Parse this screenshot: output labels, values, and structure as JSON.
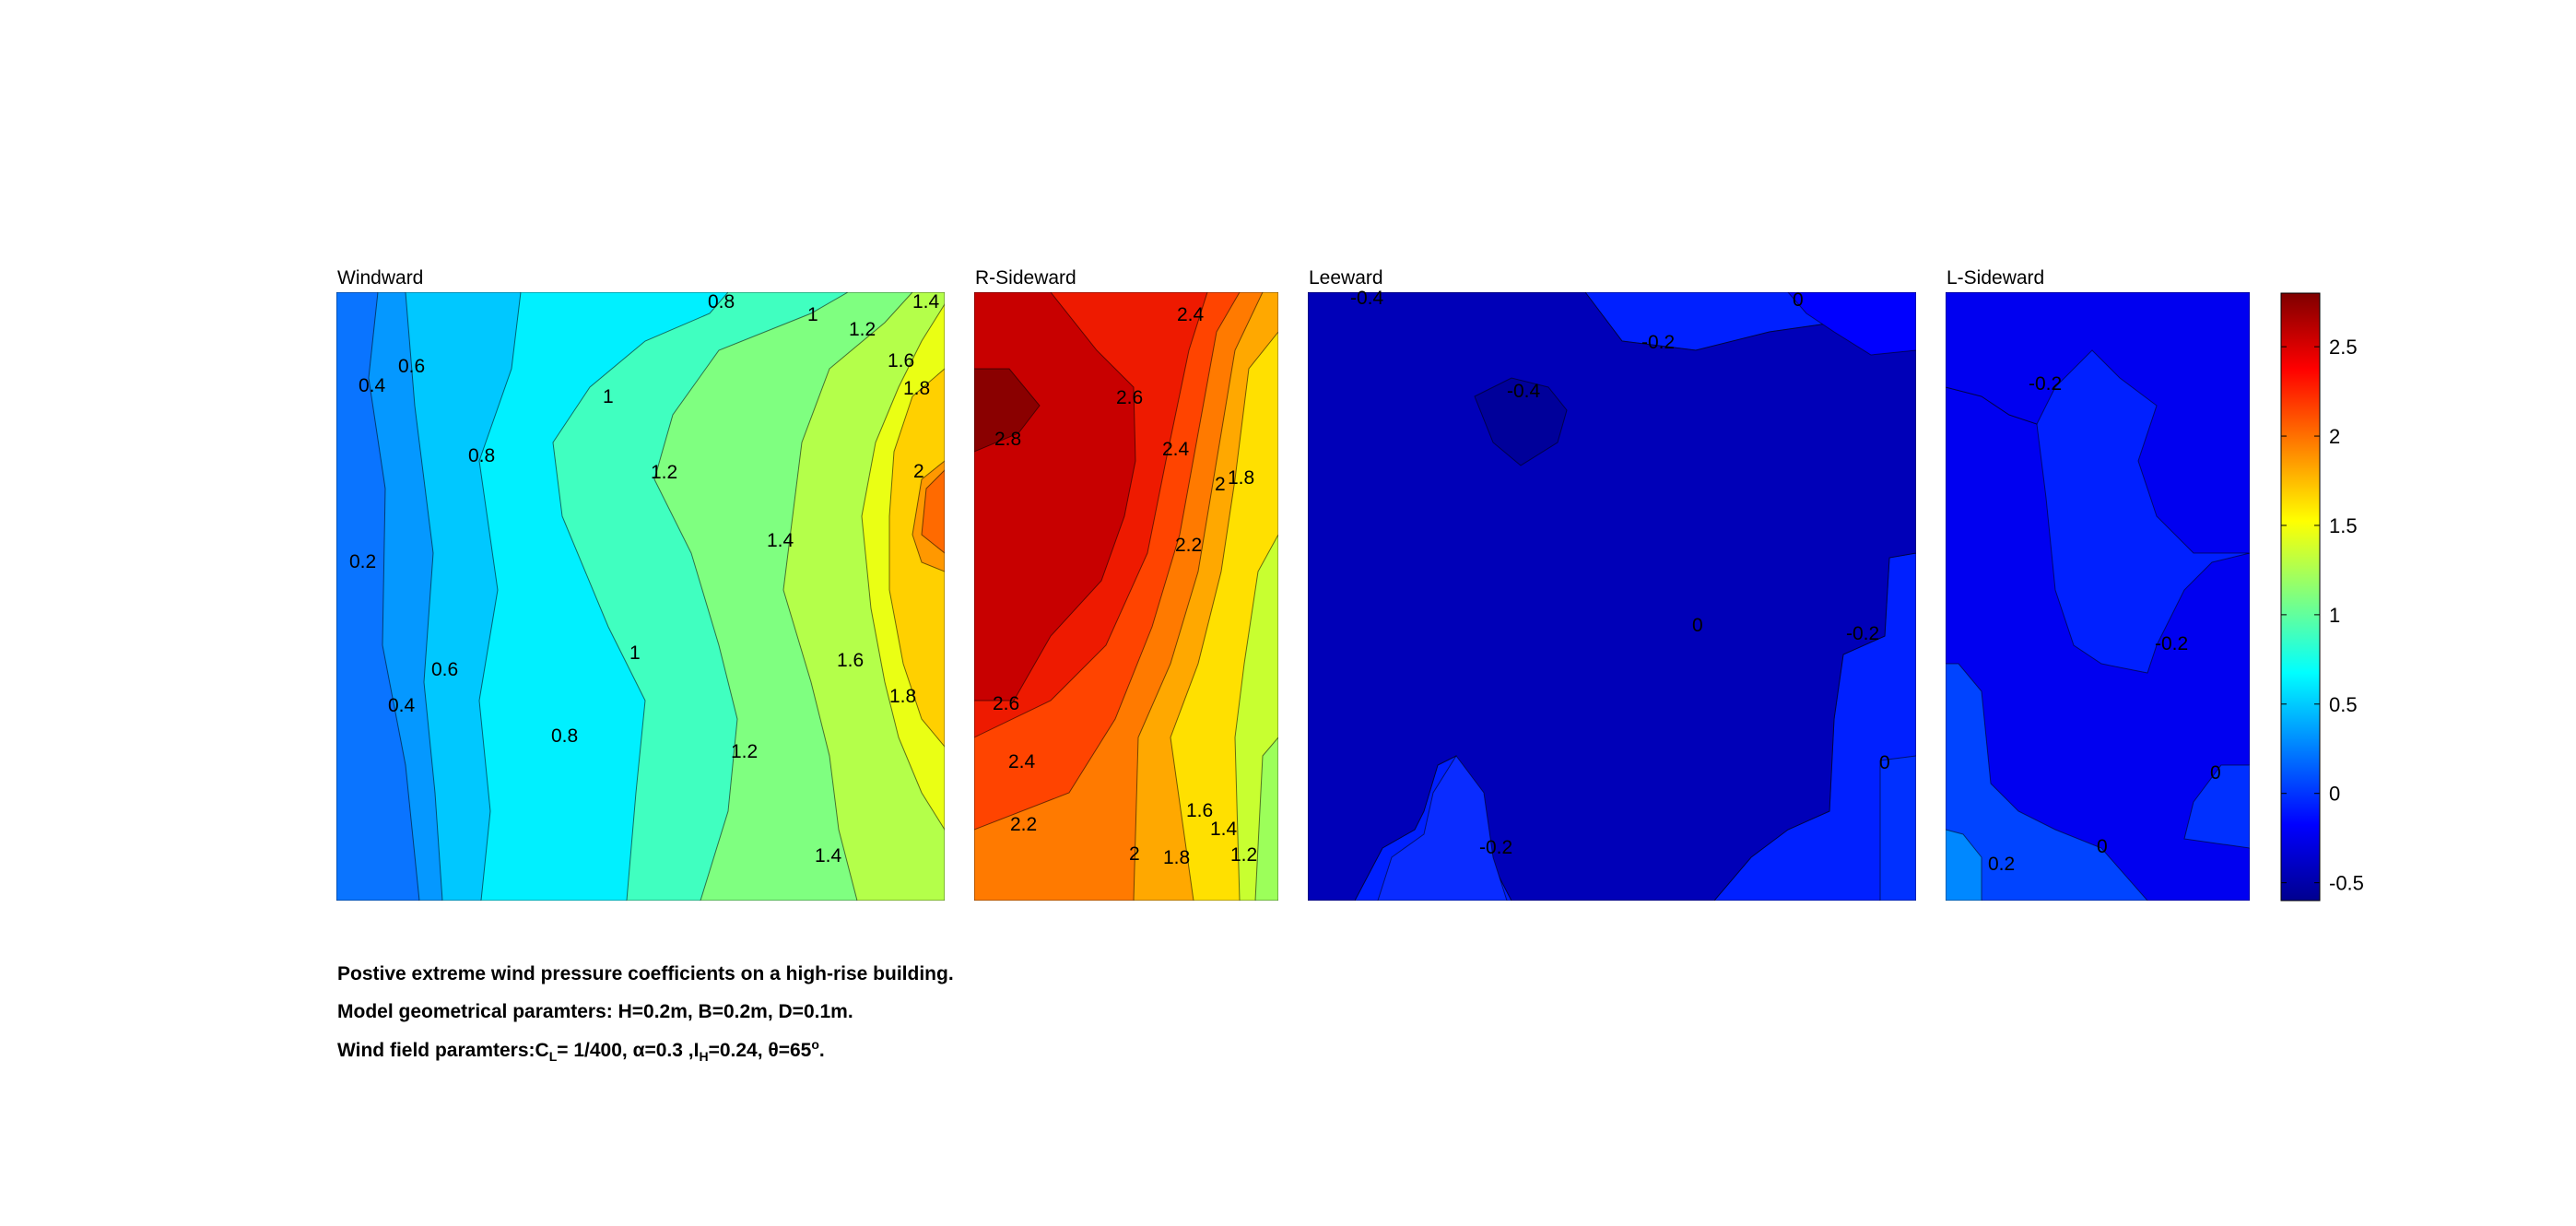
{
  "chart_data": {
    "type": "heatmap",
    "description_style": "filled contour maps, jet colormap",
    "panels": [
      {
        "title": "Windward",
        "contour_labels": [
          "0.8",
          "1",
          "1.2",
          "1.4",
          "0.6",
          "1.6",
          "0.4",
          "1.8",
          "1",
          "0.8",
          "1.2",
          "2",
          "0.2",
          "1.4",
          "1",
          "1.6",
          "0.6",
          "0.4",
          "1.8",
          "0.8",
          "1.2",
          "1.4"
        ]
      },
      {
        "title": "R-Sideward",
        "contour_labels": [
          "2.4",
          "2.6",
          "2.8",
          "2.4",
          "2",
          "1.8",
          "2.2",
          "2.6",
          "2.4",
          "2.2",
          "1.6",
          "1.4",
          "2",
          "1.8",
          "1.2"
        ]
      },
      {
        "title": "Leeward",
        "contour_labels": [
          "-0.4",
          "0",
          "-0.2",
          "-0.4",
          "0",
          "-0.2",
          "0",
          "-0.2"
        ]
      },
      {
        "title": "L-Sideward",
        "contour_labels": [
          "-0.2",
          "-0.2",
          "0",
          "0.2",
          "0"
        ]
      }
    ],
    "colorbar": {
      "ticks": [
        "2.5",
        "2",
        "1.5",
        "1",
        "0.5",
        "0",
        "-0.5"
      ],
      "range": [
        -0.6,
        2.8
      ],
      "colormap": [
        "#00008f",
        "#0000ff",
        "#007fff",
        "#00ffff",
        "#7fff7f",
        "#ffff00",
        "#ff7f00",
        "#ff0000",
        "#7f0000"
      ]
    }
  },
  "caption": {
    "line1": "Postive extreme  wind pressure coefficients on a high-rise building.",
    "line2": "Model geometrical paramters: H=0.2m, B=0.2m, D=0.1m.",
    "line3_prefix": "Wind field paramters:C",
    "line3_cl_sub": "L",
    "line3_mid": "= 1/400, α=0.3 ,I",
    "line3_ih_sub": "H",
    "line3_theta": "=0.24, θ=65",
    "line3_deg_sup": "o",
    "line3_end": "."
  }
}
